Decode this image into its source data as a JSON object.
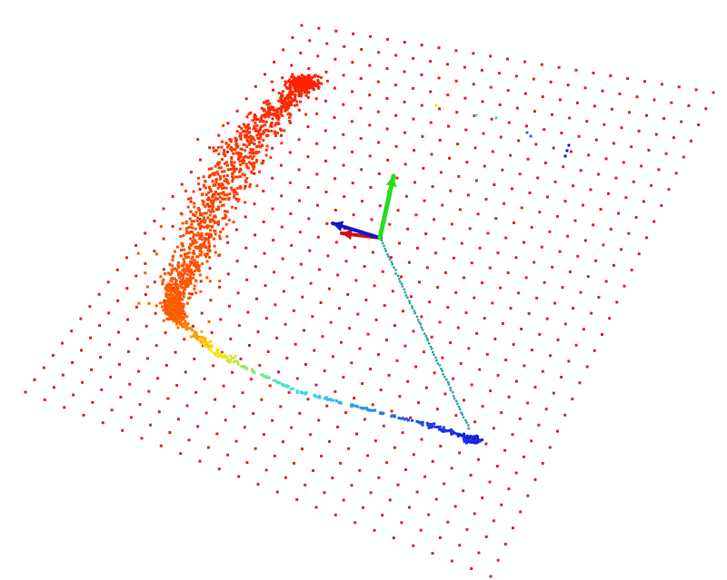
{
  "viewer": {
    "background": "#ffffff",
    "grid_color": "#e02424",
    "grid_rows": 31,
    "grid_cols": 25
  },
  "axes": {
    "x_color": "#cc1010",
    "y_color": "#22dd22",
    "z_color": "#1515cc"
  },
  "point_cloud": {
    "colormap": "jet",
    "colors": {
      "red": "#ff1e00",
      "orange": "#ff6400",
      "yellow": "#ffe600",
      "cyan": "#25e6ee",
      "blue": "#0a14dc",
      "teal": "#2aa7a0"
    }
  }
}
